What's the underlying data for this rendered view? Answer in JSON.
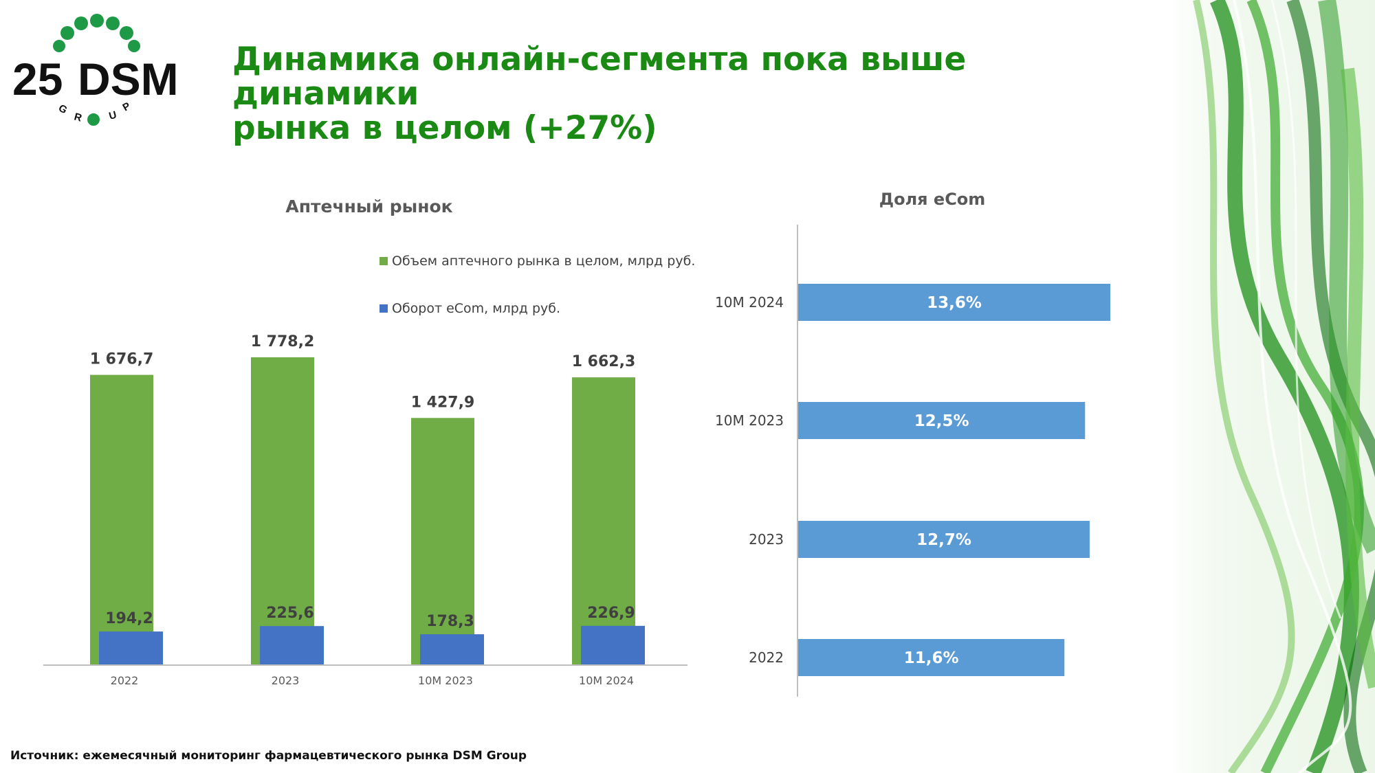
{
  "header": {
    "title_line1": "Динамика онлайн-сегмента пока выше динамики",
    "title_line2": "рынка в целом (+27%)"
  },
  "logo": {
    "number": "25",
    "name": "DSM",
    "sub": "GROUP",
    "dot_color": "#1e9a47"
  },
  "colors": {
    "market": "#70ad47",
    "ecom": "#4472c4",
    "share": "#5b9bd5",
    "title": "#1a8a14"
  },
  "chart_data": [
    {
      "type": "bar",
      "title": "Аптечный рынок",
      "categories": [
        "2022",
        "2023",
        "10M 2023",
        "10M 2024"
      ],
      "series": [
        {
          "name": "Объем аптечного рынка в целом, млрд руб.",
          "values": [
            1676.7,
            1778.2,
            1427.9,
            1662.3
          ],
          "labels": [
            "1 676,7",
            "1 778,2",
            "1 427,9",
            "1 662,3"
          ]
        },
        {
          "name": "Оборот eCom, млрд руб.",
          "values": [
            194.2,
            225.6,
            178.3,
            226.9
          ],
          "labels": [
            "194,2",
            "225,6",
            "178,3",
            "226,9"
          ]
        }
      ],
      "ylim": [
        0,
        1778.2
      ],
      "legend": "top-right",
      "grid": false
    },
    {
      "type": "bar",
      "orientation": "horizontal",
      "title": "Доля eCom",
      "categories": [
        "10M 2024",
        "10M 2023",
        "2023",
        "2022"
      ],
      "values": [
        13.6,
        12.5,
        12.7,
        11.6
      ],
      "labels": [
        "13,6%",
        "12,5%",
        "12,7%",
        "11,6%"
      ],
      "xlim": [
        0,
        13.6
      ],
      "grid": false
    }
  ],
  "footer": {
    "source": "Источник: ежемесячный мониторинг фармацевтического рынка DSM Group"
  }
}
